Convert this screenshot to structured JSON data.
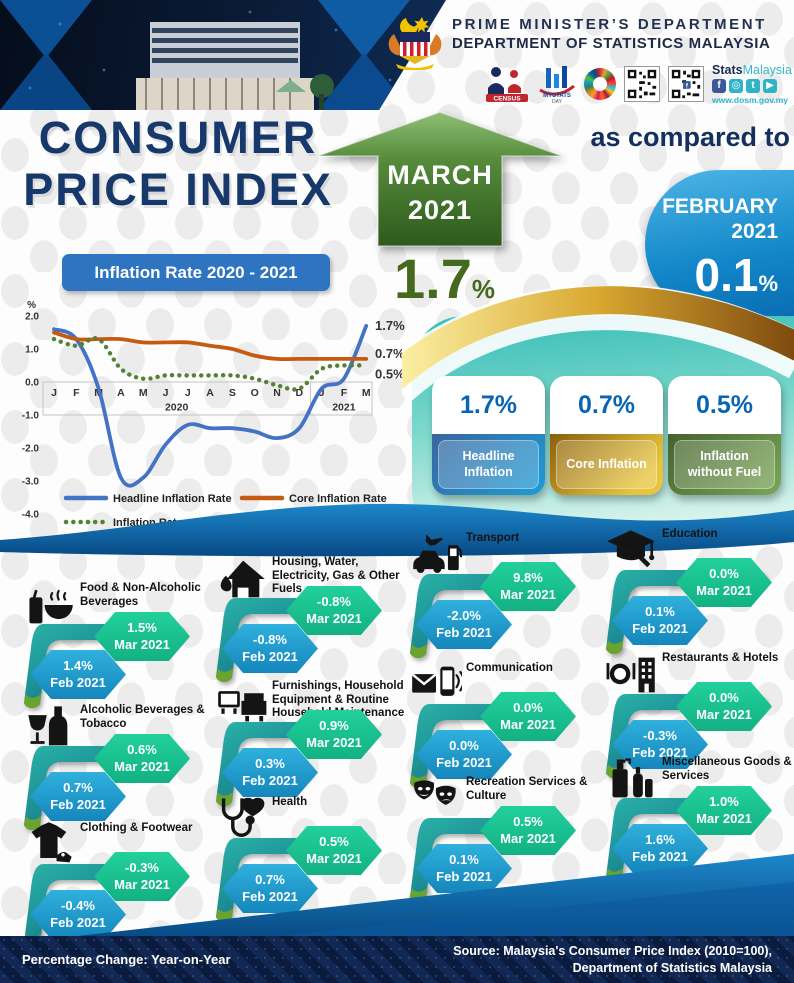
{
  "header": {
    "department_line1": "PRIME MINISTER’S DEPARTMENT",
    "department_line2": "DEPARTMENT OF STATISTICS MALAYSIA",
    "brand": {
      "stats": "Stats",
      "malaysia": "Malaysia",
      "facebook": "f",
      "youtube": "▶",
      "website": "www.dosm.gov.my"
    }
  },
  "title_block": {
    "title_line1": "CONSUMER",
    "title_line2": "PRICE INDEX",
    "arrow_month": "MARCH",
    "arrow_year": "2021",
    "headline_value": "1.7",
    "headline_percent": "%",
    "compare_text": "as compared to",
    "compare_month": "FEBRUARY",
    "compare_year": "2021",
    "compare_value": "0.1",
    "compare_percent": "%"
  },
  "chart_header": {
    "label": "Inflation Rate 2020 - 2021"
  },
  "chart_data": {
    "type": "line",
    "title": "Inflation Rate 2020 - 2021",
    "ylabel": "%",
    "ylim": [
      -4.0,
      2.0
    ],
    "yticks": [
      2.0,
      1.0,
      0.0,
      -1.0,
      -2.0,
      -3.0,
      -4.0
    ],
    "x": [
      "J",
      "F",
      "M",
      "A",
      "M",
      "J",
      "J",
      "A",
      "S",
      "O",
      "N",
      "D",
      "J",
      "F",
      "M"
    ],
    "year_labels": [
      {
        "label": "2020",
        "span": [
          0,
          11
        ]
      },
      {
        "label": "2021",
        "span": [
          12,
          14
        ]
      }
    ],
    "grid": false,
    "legend_position": "bottom",
    "series": [
      {
        "name": "Headline Inflation Rate",
        "color": "#4472c4",
        "style": "solid",
        "end_label": "1.7%",
        "values": [
          1.6,
          1.3,
          -0.2,
          -2.9,
          -2.9,
          -1.9,
          -1.3,
          -1.4,
          -1.4,
          -1.5,
          -1.7,
          -1.4,
          -0.2,
          0.1,
          1.7
        ]
      },
      {
        "name": "Core Inflation Rate",
        "color": "#c55a11",
        "style": "solid",
        "end_label": "0.7%",
        "values": [
          1.5,
          1.3,
          1.3,
          1.3,
          1.2,
          1.2,
          1.2,
          1.1,
          1.0,
          0.8,
          0.7,
          0.7,
          0.7,
          0.7,
          0.7
        ]
      },
      {
        "name": "Inflation Rate without Fuel",
        "color": "#548235",
        "style": "dotted",
        "end_label": "0.5%",
        "values": [
          1.3,
          1.1,
          1.3,
          0.4,
          0.1,
          0.2,
          0.2,
          0.2,
          0.2,
          0.1,
          -0.1,
          -0.2,
          0.4,
          0.5,
          0.5
        ]
      }
    ]
  },
  "summary_cards": [
    {
      "value": "1.7%",
      "label": "Headline Inflation",
      "theme": "blue"
    },
    {
      "value": "0.7%",
      "label": "Core Inflation",
      "theme": "gold"
    },
    {
      "value": "0.5%",
      "label": "Inflation without Fuel",
      "theme": "green"
    }
  ],
  "categories": [
    {
      "name": "Food & Non-Alcoholic Beverages",
      "icon": "food-beverage-icon",
      "mar": {
        "value": "1.5%",
        "label": "Mar 2021"
      },
      "feb": {
        "value": "1.4%",
        "label": "Feb 2021"
      }
    },
    {
      "name": "Housing, Water, Electricity, Gas & Other Fuels",
      "icon": "house-fuel-icon",
      "mar": {
        "value": "-0.8%",
        "label": "Mar 2021"
      },
      "feb": {
        "value": "-0.8%",
        "label": "Feb 2021"
      }
    },
    {
      "name": "Transport",
      "icon": "transport-icon",
      "mar": {
        "value": "9.8%",
        "label": "Mar 2021"
      },
      "feb": {
        "value": "-2.0%",
        "label": "Feb 2021"
      }
    },
    {
      "name": "Education",
      "icon": "education-icon",
      "mar": {
        "value": "0.0%",
        "label": "Mar 2021"
      },
      "feb": {
        "value": "0.1%",
        "label": "Feb 2021"
      }
    },
    {
      "name": "Alcoholic Beverages & Tobacco",
      "icon": "alcohol-tobacco-icon",
      "mar": {
        "value": "0.6%",
        "label": "Mar 2021"
      },
      "feb": {
        "value": "0.7%",
        "label": "Feb 2021"
      }
    },
    {
      "name": "Furnishings, Household Equipment & Routine Household Maintenance",
      "icon": "furnishings-icon",
      "mar": {
        "value": "0.9%",
        "label": "Mar 2021"
      },
      "feb": {
        "value": "0.3%",
        "label": "Feb 2021"
      }
    },
    {
      "name": "Communication",
      "icon": "communication-icon",
      "mar": {
        "value": "0.0%",
        "label": "Mar 2021"
      },
      "feb": {
        "value": "0.0%",
        "label": "Feb 2021"
      }
    },
    {
      "name": "Restaurants & Hotels",
      "icon": "restaurant-hotel-icon",
      "mar": {
        "value": "0.0%",
        "label": "Mar 2021"
      },
      "feb": {
        "value": "-0.3%",
        "label": "Feb 2021"
      }
    },
    {
      "name": "Clothing & Footwear",
      "icon": "clothing-icon",
      "mar": {
        "value": "-0.3%",
        "label": "Mar 2021"
      },
      "feb": {
        "value": "-0.4%",
        "label": "Feb 2021"
      }
    },
    {
      "name": "Health",
      "icon": "health-icon",
      "mar": {
        "value": "0.5%",
        "label": "Mar 2021"
      },
      "feb": {
        "value": "0.7%",
        "label": "Feb 2021"
      }
    },
    {
      "name": "Recreation Services & Culture",
      "icon": "recreation-icon",
      "mar": {
        "value": "0.5%",
        "label": "Mar 2021"
      },
      "feb": {
        "value": "0.1%",
        "label": "Feb 2021"
      }
    },
    {
      "name": "Miscellaneous Goods & Services",
      "icon": "miscellaneous-icon",
      "mar": {
        "value": "1.0%",
        "label": "Mar 2021"
      },
      "feb": {
        "value": "1.6%",
        "label": "Feb 2021"
      }
    }
  ],
  "footer": {
    "left_note": "Percentage Change: Year-on-Year",
    "source_line1": "Source: Malaysia's Consumer Price Index (2010=100),",
    "source_line2": "Department of Statistics Malaysia"
  },
  "colors": {
    "navy": "#16386b",
    "arrow_green_dark": "#2d5a1d",
    "rate_green": "#45691d",
    "feb_bubble_blue": "#1287c9",
    "mar_hex_green": "#1dc795",
    "feb_hex_blue": "#1d9ccc",
    "teal_panel": "#35bdb7",
    "footer_navy": "#0b1b3d"
  }
}
